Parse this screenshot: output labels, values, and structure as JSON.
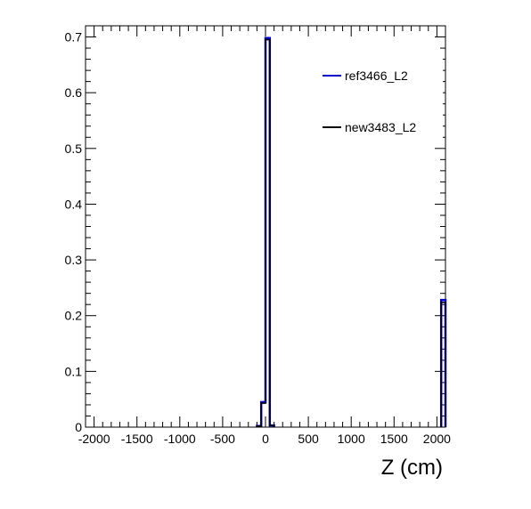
{
  "chart_data": {
    "type": "line",
    "title": "",
    "xlabel": "Z (cm)",
    "ylabel": "",
    "xlim": [
      -2100,
      2100
    ],
    "ylim": [
      0,
      0.72
    ],
    "grid": false,
    "legend_position": "top-right",
    "x_ticks": [
      -2000,
      -1500,
      -1000,
      -500,
      0,
      500,
      1000,
      1500,
      2000
    ],
    "x_tick_labels": [
      "-2000",
      "-1500",
      "-1000",
      "-500",
      "0",
      "500",
      "1000",
      "1500",
      "2000"
    ],
    "y_ticks": [
      0,
      0.1,
      0.2,
      0.3,
      0.4,
      0.5,
      0.6,
      0.7
    ],
    "y_tick_labels": [
      "0",
      "0.1",
      "0.2",
      "0.3",
      "0.4",
      "0.5",
      "0.6",
      "0.7"
    ],
    "bin_width": 50,
    "series": [
      {
        "name": "ref3466_L2",
        "color": "#0000cc",
        "x": [
          -100,
          -50,
          0,
          50,
          2050
        ],
        "values": [
          0.002,
          0.045,
          0.698,
          0.003,
          0.228
        ]
      },
      {
        "name": "new3483_L2",
        "color": "#000000",
        "x": [
          -100,
          -50,
          0,
          50,
          2050
        ],
        "values": [
          0.002,
          0.043,
          0.695,
          0.003,
          0.224
        ]
      }
    ]
  }
}
